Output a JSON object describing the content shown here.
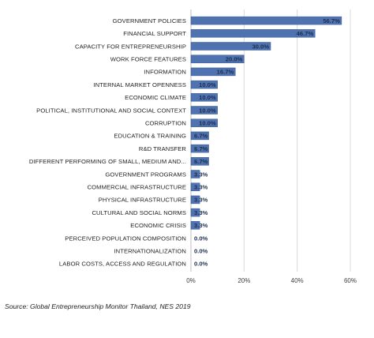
{
  "chart_data": {
    "type": "bar",
    "orientation": "horizontal",
    "categories": [
      "GOVERNMENT POLICIES",
      "FINANCIAL SUPPORT",
      "CAPACITY FOR ENTREPRENEURSHIP",
      "WORK FORCE FEATURES",
      "INFORMATION",
      "INTERNAL MARKET OPENNESS",
      "ECONOMIC CLIMATE",
      "POLITICAL, INSTITUTIONAL AND SOCIAL CONTEXT",
      "CORRUPTION",
      "EDUCATION & TRAINING",
      "R&D TRANSFER",
      "DIFFERENT PERFORMING OF SMALL, MEDIUM AND...",
      "GOVERNMENT PROGRAMS",
      "COMMERCIAL INFRASTRUCTURE",
      "PHYSICAL INFRASTRUCTURE",
      "CULTURAL AND SOCIAL NORMS",
      "ECONOMIC CRISIS",
      "PERCEIVED POPULATION COMPOSITION",
      "INTERNATIONALIZATION",
      "LABOR COSTS, ACCESS AND REGULATION"
    ],
    "values": [
      56.7,
      46.7,
      30.0,
      20.0,
      16.7,
      10.0,
      10.0,
      10.0,
      10.0,
      6.7,
      6.7,
      6.7,
      3.3,
      3.3,
      3.3,
      3.3,
      3.3,
      0.0,
      0.0,
      0.0
    ],
    "value_labels": [
      "56.7%",
      "46.7%",
      "30.0%",
      "20.0%",
      "16.7%",
      "10.0%",
      "10.0%",
      "10.0%",
      "10.0%",
      "6.7%",
      "6.7%",
      "6.7%",
      "3.3%",
      "3.3%",
      "3.3%",
      "3.3%",
      "3.3%",
      "0.0%",
      "0.0%",
      "0.0%"
    ],
    "xlim": [
      0,
      60
    ],
    "xticks": [
      "0%",
      "20%",
      "40%",
      "60%"
    ],
    "title": "",
    "xlabel": "",
    "ylabel": "",
    "grid": "vertical",
    "legend": "none",
    "bar_color": "#4f73b0",
    "bar_edge_color": "#3b5d98",
    "label_color": "#1f2d4f"
  },
  "source_note": "Source: Global Entrepreneurship Monitor Thailand, NES 2019"
}
